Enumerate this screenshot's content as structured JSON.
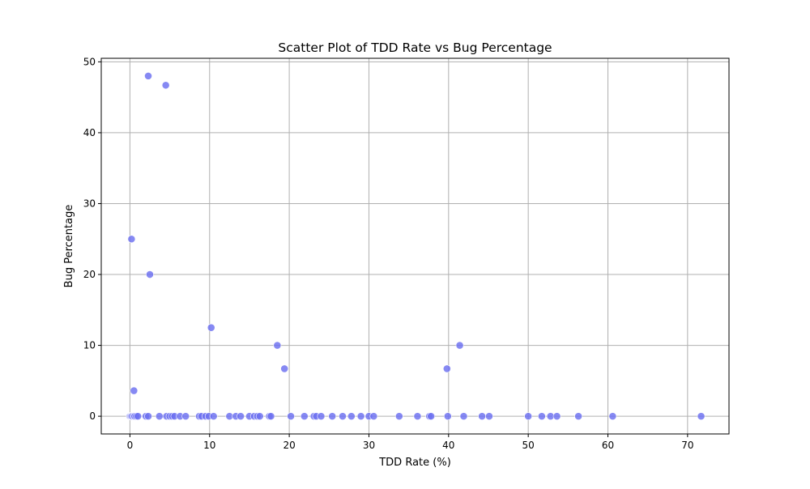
{
  "chart_data": {
    "type": "scatter",
    "title": "Scatter Plot of TDD Rate vs Bug Percentage",
    "xlabel": "TDD Rate (%)",
    "ylabel": "Bug Percentage",
    "xlim": [
      -3.6,
      75.2
    ],
    "ylim": [
      -2.5,
      50.5
    ],
    "xticks": [
      0,
      10,
      20,
      30,
      40,
      50,
      60,
      70
    ],
    "yticks": [
      0,
      10,
      20,
      30,
      40,
      50
    ],
    "grid": true,
    "legend": "none",
    "point_color": "#6b6ff0",
    "points": [
      {
        "x": 0.0,
        "y": 0
      },
      {
        "x": 0.1,
        "y": 0
      },
      {
        "x": 0.2,
        "y": 0
      },
      {
        "x": 0.3,
        "y": 0
      },
      {
        "x": 0.5,
        "y": 0
      },
      {
        "x": 0.6,
        "y": 0
      },
      {
        "x": 0.8,
        "y": 0
      },
      {
        "x": 1.0,
        "y": 0
      },
      {
        "x": 2.0,
        "y": 0
      },
      {
        "x": 2.3,
        "y": 0
      },
      {
        "x": 3.7,
        "y": 0
      },
      {
        "x": 4.6,
        "y": 0
      },
      {
        "x": 5.0,
        "y": 0
      },
      {
        "x": 5.3,
        "y": 0
      },
      {
        "x": 5.6,
        "y": 0
      },
      {
        "x": 6.3,
        "y": 0
      },
      {
        "x": 7.0,
        "y": 0
      },
      {
        "x": 8.7,
        "y": 0
      },
      {
        "x": 9.0,
        "y": 0
      },
      {
        "x": 9.5,
        "y": 0
      },
      {
        "x": 9.9,
        "y": 0
      },
      {
        "x": 10.5,
        "y": 0
      },
      {
        "x": 12.5,
        "y": 0
      },
      {
        "x": 13.3,
        "y": 0
      },
      {
        "x": 13.9,
        "y": 0
      },
      {
        "x": 15.0,
        "y": 0
      },
      {
        "x": 15.6,
        "y": 0
      },
      {
        "x": 16.0,
        "y": 0
      },
      {
        "x": 16.3,
        "y": 0
      },
      {
        "x": 17.5,
        "y": 0
      },
      {
        "x": 17.7,
        "y": 0
      },
      {
        "x": 20.2,
        "y": 0
      },
      {
        "x": 21.9,
        "y": 0
      },
      {
        "x": 23.1,
        "y": 0
      },
      {
        "x": 23.4,
        "y": 0
      },
      {
        "x": 24.0,
        "y": 0
      },
      {
        "x": 25.4,
        "y": 0
      },
      {
        "x": 26.7,
        "y": 0
      },
      {
        "x": 27.8,
        "y": 0
      },
      {
        "x": 29.0,
        "y": 0
      },
      {
        "x": 30.0,
        "y": 0
      },
      {
        "x": 30.6,
        "y": 0
      },
      {
        "x": 33.8,
        "y": 0
      },
      {
        "x": 36.1,
        "y": 0
      },
      {
        "x": 37.6,
        "y": 0
      },
      {
        "x": 37.8,
        "y": 0
      },
      {
        "x": 39.9,
        "y": 0
      },
      {
        "x": 41.9,
        "y": 0
      },
      {
        "x": 44.2,
        "y": 0
      },
      {
        "x": 45.1,
        "y": 0
      },
      {
        "x": 50.0,
        "y": 0
      },
      {
        "x": 51.7,
        "y": 0
      },
      {
        "x": 52.8,
        "y": 0
      },
      {
        "x": 53.6,
        "y": 0
      },
      {
        "x": 56.3,
        "y": 0
      },
      {
        "x": 60.6,
        "y": 0
      },
      {
        "x": 71.7,
        "y": 0
      },
      {
        "x": 2.3,
        "y": 48.0
      },
      {
        "x": 4.5,
        "y": 46.7
      },
      {
        "x": 0.2,
        "y": 25.0
      },
      {
        "x": 2.5,
        "y": 20.0
      },
      {
        "x": 10.2,
        "y": 12.5
      },
      {
        "x": 18.5,
        "y": 10.0
      },
      {
        "x": 41.4,
        "y": 10.0
      },
      {
        "x": 19.4,
        "y": 6.7
      },
      {
        "x": 39.8,
        "y": 6.7
      },
      {
        "x": 0.5,
        "y": 3.6
      }
    ]
  }
}
